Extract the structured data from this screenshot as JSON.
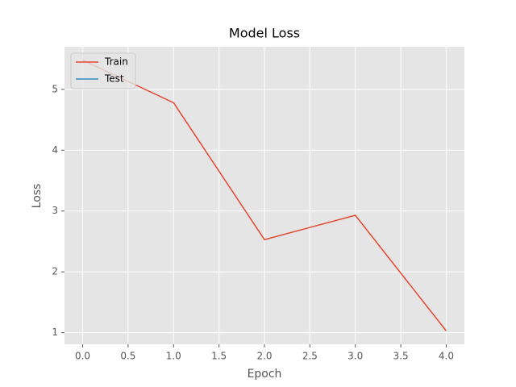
{
  "chart_data": {
    "type": "line",
    "title": "Model Loss",
    "x_label": "Epoch",
    "y_label": "Loss",
    "x": [
      0,
      1,
      2,
      3,
      4
    ],
    "series": [
      {
        "name": "Train",
        "color": "#E24A33",
        "values": [
          5.48,
          4.78,
          2.53,
          2.93,
          1.03
        ]
      },
      {
        "name": "Test",
        "color": "#348ABD",
        "values": [
          null,
          null,
          null,
          null,
          null
        ]
      }
    ],
    "xlim": [
      -0.2,
      4.2
    ],
    "xticks": [
      {
        "value": 0,
        "label": "0.0"
      },
      {
        "value": 0.5,
        "label": "0.5"
      },
      {
        "value": 1,
        "label": "1.0"
      },
      {
        "value": 1.5,
        "label": "1.5"
      },
      {
        "value": 2,
        "label": "2.0"
      },
      {
        "value": 2.5,
        "label": "2.5"
      },
      {
        "value": 3,
        "label": "3.0"
      },
      {
        "value": 3.5,
        "label": "3.5"
      },
      {
        "value": 4,
        "label": "4.0"
      }
    ],
    "ylim": [
      0.81,
      5.7
    ],
    "yticks": [
      1,
      2,
      3,
      4,
      5
    ],
    "grid": true,
    "legend": "upper left"
  }
}
